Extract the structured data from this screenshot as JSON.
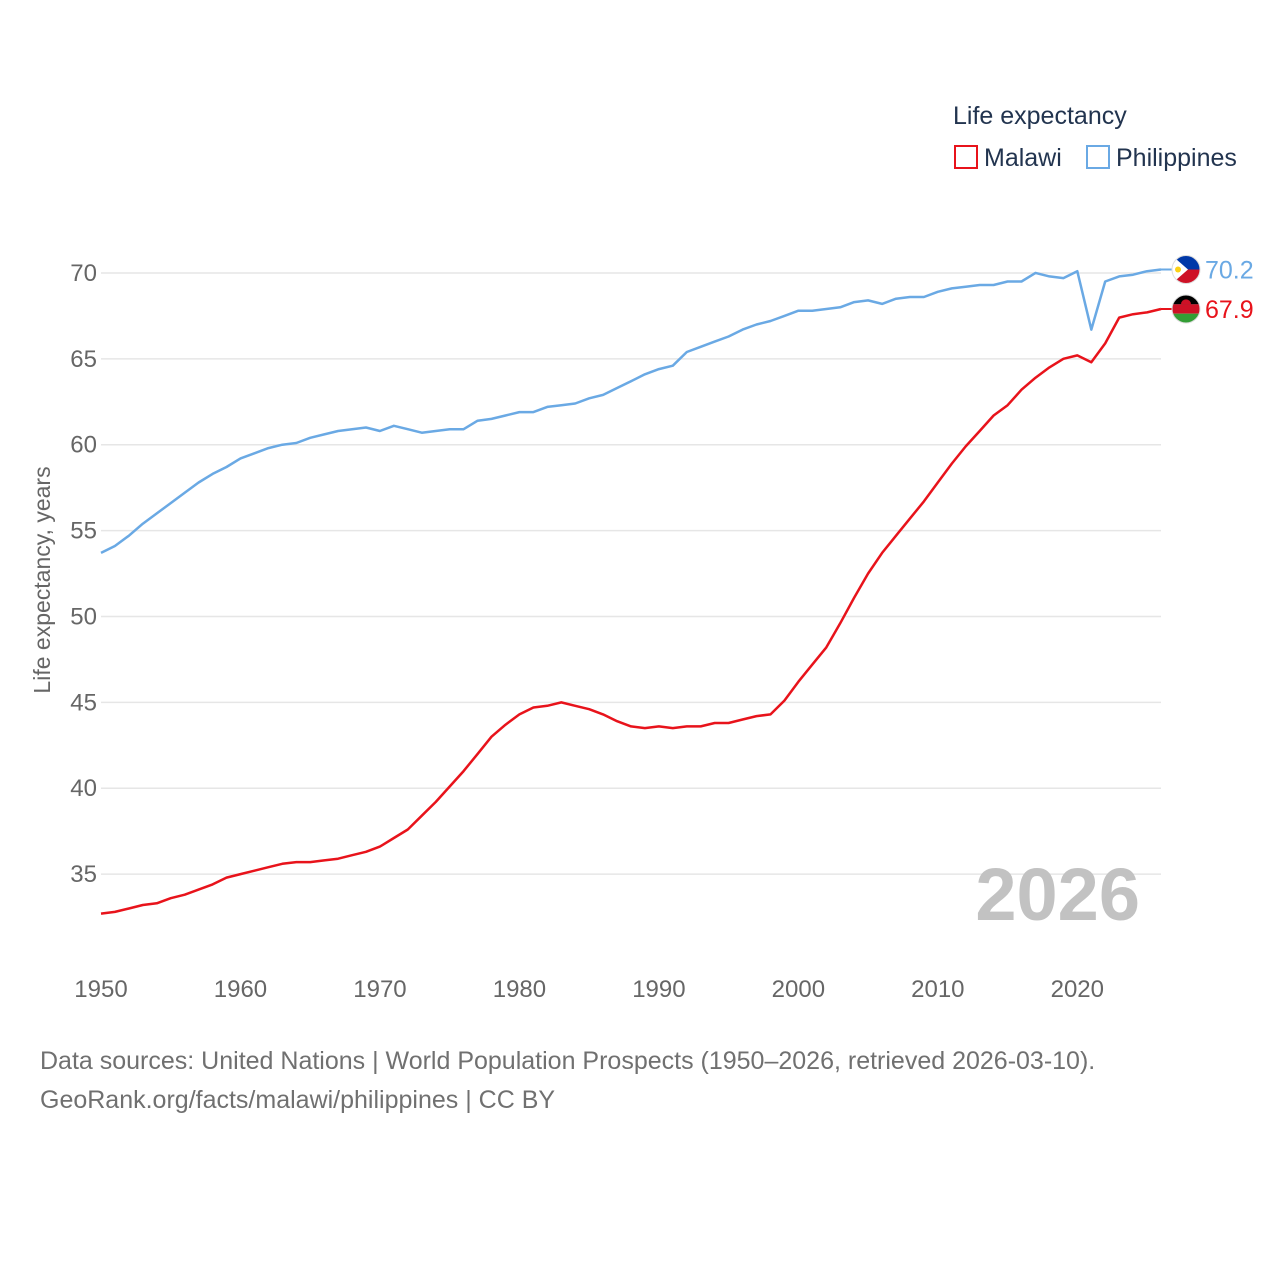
{
  "chart_data": {
    "type": "line",
    "title": "",
    "xlabel": "",
    "ylabel": "Life expectancy, years",
    "xlim": [
      1950,
      2026
    ],
    "ylim": [
      30,
      72.5
    ],
    "yticks": [
      35,
      40,
      45,
      50,
      55,
      60,
      65,
      70
    ],
    "xticks": [
      1950,
      1960,
      1970,
      1980,
      1990,
      2000,
      2010,
      2020
    ],
    "current_year": "2026",
    "legend": {
      "title": "Life expectancy",
      "position": "top-right"
    },
    "x": [
      1950,
      1951,
      1952,
      1953,
      1954,
      1955,
      1956,
      1957,
      1958,
      1959,
      1960,
      1961,
      1962,
      1963,
      1964,
      1965,
      1966,
      1967,
      1968,
      1969,
      1970,
      1971,
      1972,
      1973,
      1974,
      1975,
      1976,
      1977,
      1978,
      1979,
      1980,
      1981,
      1982,
      1983,
      1984,
      1985,
      1986,
      1987,
      1988,
      1989,
      1990,
      1991,
      1992,
      1993,
      1994,
      1995,
      1996,
      1997,
      1998,
      1999,
      2000,
      2001,
      2002,
      2003,
      2004,
      2005,
      2006,
      2007,
      2008,
      2009,
      2010,
      2011,
      2012,
      2013,
      2014,
      2015,
      2016,
      2017,
      2018,
      2019,
      2020,
      2021,
      2022,
      2023,
      2024,
      2025,
      2026
    ],
    "series": [
      {
        "name": "Philippines",
        "color": "#6aa9e4",
        "end_label": "70.2",
        "flag": "philippines-flag-icon",
        "values": [
          53.7,
          54.1,
          54.7,
          55.4,
          56.0,
          56.6,
          57.2,
          57.8,
          58.3,
          58.7,
          59.2,
          59.5,
          59.8,
          60.0,
          60.1,
          60.4,
          60.6,
          60.8,
          60.9,
          61.0,
          60.8,
          61.1,
          60.9,
          60.7,
          60.8,
          60.9,
          60.9,
          61.4,
          61.5,
          61.7,
          61.9,
          61.9,
          62.2,
          62.3,
          62.4,
          62.7,
          62.9,
          63.3,
          63.7,
          64.1,
          64.4,
          64.6,
          65.4,
          65.7,
          66.0,
          66.3,
          66.7,
          67.0,
          67.2,
          67.5,
          67.8,
          67.8,
          67.9,
          68.0,
          68.3,
          68.4,
          68.2,
          68.5,
          68.6,
          68.6,
          68.9,
          69.1,
          69.2,
          69.3,
          69.3,
          69.5,
          69.5,
          70.0,
          69.8,
          69.7,
          70.1,
          66.7,
          69.5,
          69.8,
          69.9,
          70.1,
          70.2
        ]
      },
      {
        "name": "Malawi",
        "color": "#e8131b",
        "end_label": "67.9",
        "flag": "malawi-flag-icon",
        "values": [
          32.7,
          32.8,
          33.0,
          33.2,
          33.3,
          33.6,
          33.8,
          34.1,
          34.4,
          34.8,
          35.0,
          35.2,
          35.4,
          35.6,
          35.7,
          35.7,
          35.8,
          35.9,
          36.1,
          36.3,
          36.6,
          37.1,
          37.6,
          38.4,
          39.2,
          40.1,
          41.0,
          42.0,
          43.0,
          43.7,
          44.3,
          44.7,
          44.8,
          45.0,
          44.8,
          44.6,
          44.3,
          43.9,
          43.6,
          43.5,
          43.6,
          43.5,
          43.6,
          43.6,
          43.8,
          43.8,
          44.0,
          44.2,
          44.3,
          45.1,
          46.2,
          47.2,
          48.2,
          49.6,
          51.1,
          52.5,
          53.7,
          54.7,
          55.7,
          56.7,
          57.8,
          58.9,
          59.9,
          60.8,
          61.7,
          62.3,
          63.2,
          63.9,
          64.5,
          65.0,
          65.2,
          64.8,
          65.9,
          67.4,
          67.6,
          67.7,
          67.9
        ]
      }
    ]
  },
  "legend_items": [
    {
      "label": "Malawi",
      "color": "#e8131b"
    },
    {
      "label": "Philippines",
      "color": "#6aa9e4"
    }
  ],
  "footer": {
    "sources": "Data sources: United Nations | World Population Prospects (1950–2026, retrieved 2026-03-10).",
    "link": "GeoRank.org/facts/malawi/philippines | CC BY"
  }
}
